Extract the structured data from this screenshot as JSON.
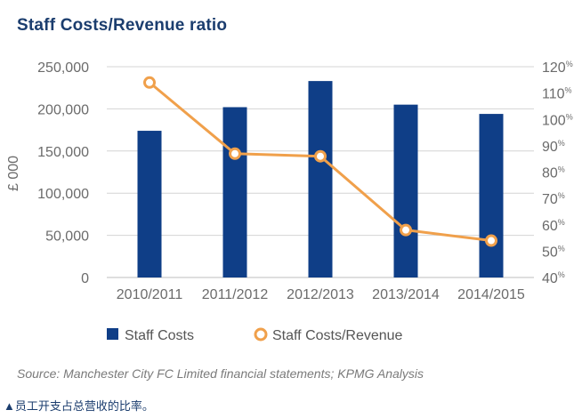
{
  "title": "Staff Costs/Revenue ratio",
  "source": "Source:  Manchester City FC Limited financial statements; KPMG Analysis",
  "caption": "▲员工开支占总营收的比率。",
  "colors": {
    "bar": "#0f3e87",
    "line": "#f0a04b",
    "grid": "#d4d4d4",
    "title": "#1b3d6e"
  },
  "chart_data": {
    "type": "bar",
    "title": "Staff Costs/Revenue ratio",
    "categories": [
      "2010/2011",
      "2011/2012",
      "2012/2013",
      "2013/2014",
      "2014/2015"
    ],
    "series": [
      {
        "name": "Staff Costs",
        "type": "bar",
        "axis": "left",
        "values": [
          174000,
          202000,
          233000,
          205000,
          194000
        ]
      },
      {
        "name": "Staff Costs/Revenue",
        "type": "line",
        "axis": "right",
        "values": [
          114,
          87,
          86,
          58,
          54
        ]
      }
    ],
    "ylabel": "£ 000",
    "ylim": [
      0,
      250000
    ],
    "y_ticks": [
      "0",
      "50,000",
      "100,000",
      "150,000",
      "200,000",
      "250,000"
    ],
    "y2lim": [
      40,
      120
    ],
    "y2_ticks": [
      "40",
      "50",
      "60",
      "70",
      "80",
      "90",
      "100",
      "110",
      "120"
    ],
    "y2_unit": "%",
    "legend": [
      "Staff Costs",
      "Staff Costs/Revenue"
    ],
    "legend_position": "bottom",
    "grid": true
  }
}
